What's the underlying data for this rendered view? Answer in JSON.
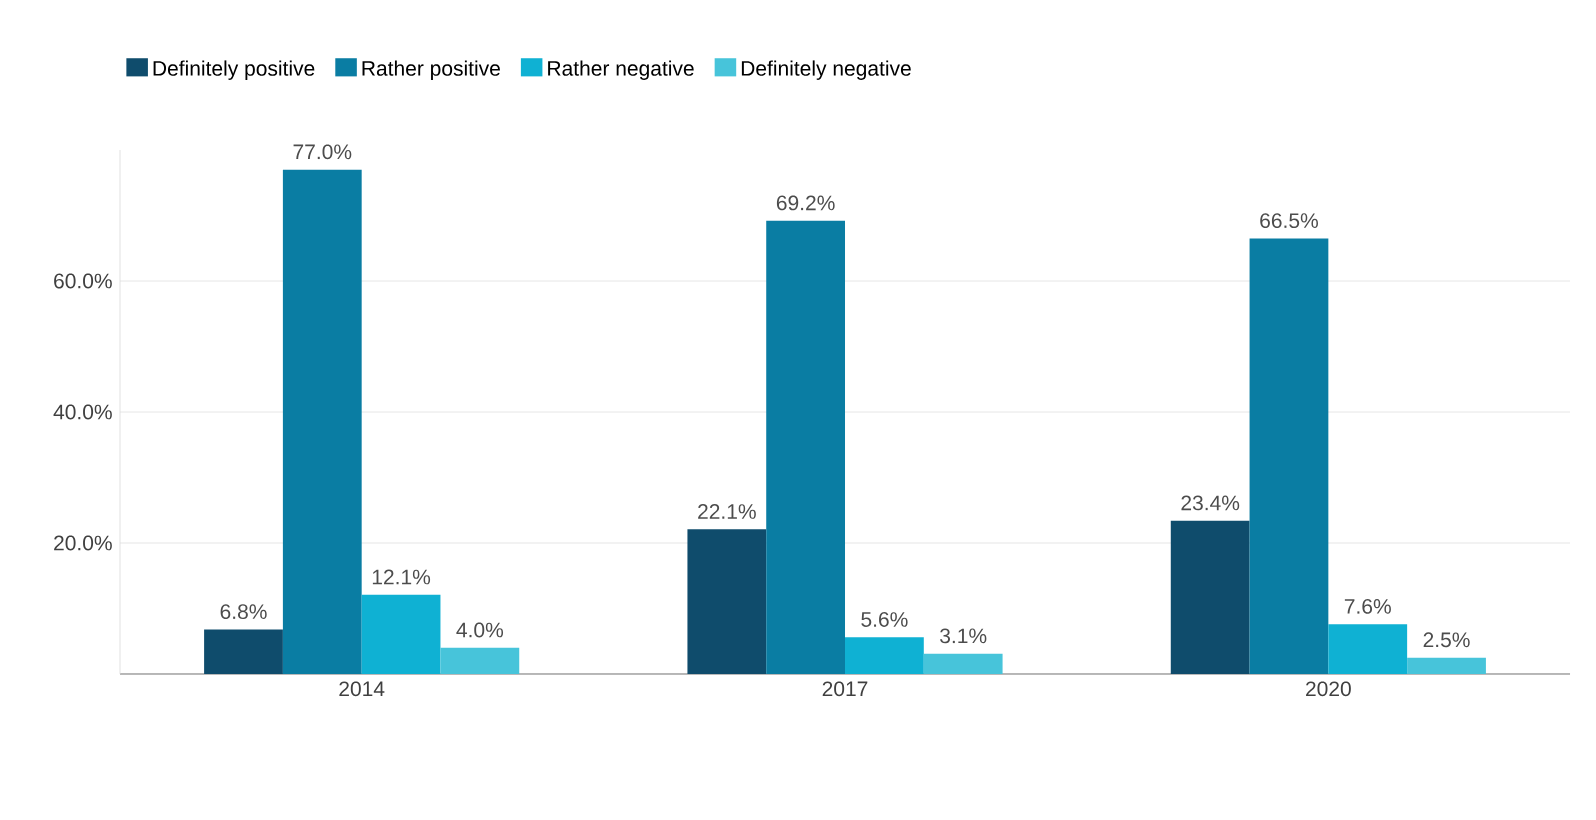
{
  "chart_data": {
    "type": "bar",
    "categories": [
      "2014",
      "2017",
      "2020"
    ],
    "series": [
      {
        "name": "Definitely positive",
        "color": "#0f4c6c",
        "values": [
          6.8,
          22.1,
          23.4
        ],
        "value_labels": [
          "6.8%",
          "22.1%",
          "23.4%"
        ]
      },
      {
        "name": "Rather positive",
        "color": "#0a7da3",
        "values": [
          77.0,
          69.2,
          66.5
        ],
        "value_labels": [
          "77.0%",
          "69.2%",
          "66.5%"
        ]
      },
      {
        "name": "Rather negative",
        "color": "#0fb1d3",
        "values": [
          12.1,
          5.6,
          7.6
        ],
        "value_labels": [
          "12.1%",
          "5.6%",
          "7.6%"
        ]
      },
      {
        "name": "Definitely negative",
        "color": "#47c4da",
        "values": [
          4.0,
          3.1,
          2.5
        ],
        "value_labels": [
          "4.0%",
          "3.1%",
          "2.5%"
        ]
      }
    ],
    "ylim": [
      0,
      80
    ],
    "yticks": [
      {
        "value": 20,
        "label": "20.0%"
      },
      {
        "value": 40,
        "label": "40.0%"
      },
      {
        "value": 60,
        "label": "60.0%"
      }
    ],
    "grid": "y",
    "legend": "top left"
  }
}
